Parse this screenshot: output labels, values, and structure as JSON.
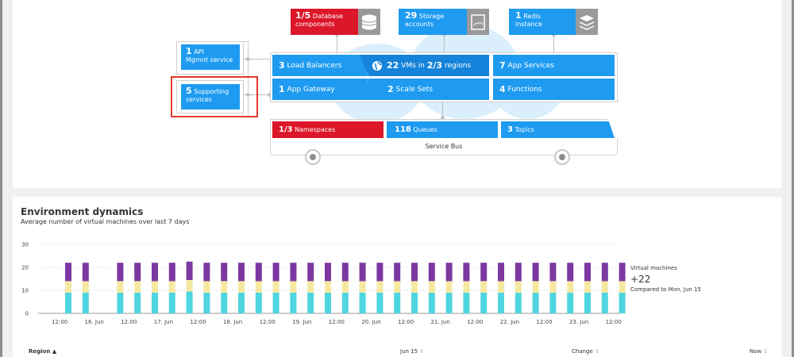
{
  "topology": {
    "database": {
      "count": "1/5",
      "label_line1": "Database",
      "label_line2": "components",
      "icon": "database-icon"
    },
    "storage": {
      "count": "29",
      "label_line1": "Storage",
      "label_line2": "accounts",
      "icon": "storage-icon"
    },
    "redis": {
      "count": "1",
      "label_line1": "Redis",
      "label_line2": "instance",
      "icon": "redis-icon"
    },
    "api": {
      "count": "1",
      "label_line1": "API",
      "label_line2": "Mgmnt service"
    },
    "supporting": {
      "count": "5",
      "label_line1": "Supporting",
      "label_line2": "services"
    },
    "load_balancers": {
      "count": "3",
      "label": "Load Balancers"
    },
    "vms": {
      "count": "22",
      "label_mid": "VMs in",
      "regions": "2/3",
      "label_end": "regions",
      "icon": "globe-icon"
    },
    "app_services": {
      "count": "7",
      "label": "App Services"
    },
    "app_gateway": {
      "count": "1",
      "label": "App Gateway"
    },
    "scale_sets": {
      "count": "2",
      "label": "Scale Sets"
    },
    "functions": {
      "count": "4",
      "label": "Functions"
    },
    "namespaces": {
      "count": "1/3",
      "label": "Namespaces"
    },
    "queues": {
      "count": "118",
      "label": "Queues"
    },
    "topics": {
      "count": "3",
      "label": "Topics"
    },
    "service_bus": {
      "label": "Service Bus"
    }
  },
  "dynamics": {
    "title": "Environment dynamics",
    "subtitle": "Average number of virtual machines over last 7 days",
    "side_label": "Virtual machines",
    "side_value": "+22",
    "side_compare": "Compared to Mon, Jun 15"
  },
  "table": {
    "col_region": "Region",
    "col_jun15": "Jun 15",
    "col_change": "Change",
    "col_now": "Now",
    "sort_asc": "▲",
    "sort_both": "⇕"
  },
  "colors": {
    "purple": "#7c38a1",
    "yellow": "#f5e9a0",
    "cyan": "#4fd5e0",
    "blue": "#1e9bf0",
    "red": "#dc172a"
  },
  "chart_data": {
    "type": "bar",
    "stacked": true,
    "title": "",
    "xlabel": "",
    "ylabel": "",
    "ylim": [
      0,
      30
    ],
    "yticks": [
      0,
      10,
      20,
      30
    ],
    "xtick_labels": [
      "12:00",
      "16. Jun",
      "12:00",
      "17. Jun",
      "12:00",
      "18. Jun",
      "12:00",
      "19. Jun",
      "12:00",
      "20. Jun",
      "12:00",
      "21. Jun",
      "12:00",
      "22. Jun",
      "12:00",
      "23. Jun",
      "12:00"
    ],
    "x": [
      1,
      2,
      4,
      5,
      6,
      7,
      8,
      9,
      10,
      11,
      12,
      13,
      14,
      15,
      16,
      17,
      18,
      19,
      20,
      21,
      22,
      23,
      24,
      25,
      26,
      27,
      28,
      29,
      30,
      31,
      32,
      33
    ],
    "series": [
      {
        "color": "#4fd5e0",
        "values": [
          9,
          9,
          9,
          9,
          9,
          9,
          9.5,
          9,
          9,
          9,
          9,
          9,
          9,
          9,
          9,
          9,
          9,
          9,
          9,
          9,
          9,
          9,
          9,
          9,
          9,
          9,
          9,
          9,
          9,
          9,
          9,
          9
        ]
      },
      {
        "color": "#f5e9a0",
        "values": [
          5,
          5,
          5,
          5,
          5,
          5,
          5,
          5,
          5,
          5,
          5,
          5,
          5,
          5,
          5,
          5,
          5,
          5,
          5,
          5,
          5,
          5,
          5,
          5,
          5,
          5,
          5,
          5,
          5,
          5,
          5,
          5
        ]
      },
      {
        "color": "#7c38a1",
        "values": [
          8,
          8,
          8,
          8,
          8,
          8,
          8,
          8,
          8,
          8,
          8,
          8,
          8,
          8,
          8,
          8,
          8,
          8,
          8,
          8,
          8,
          8,
          8,
          8,
          8,
          8,
          8,
          8,
          8,
          8,
          8,
          8
        ]
      }
    ]
  }
}
